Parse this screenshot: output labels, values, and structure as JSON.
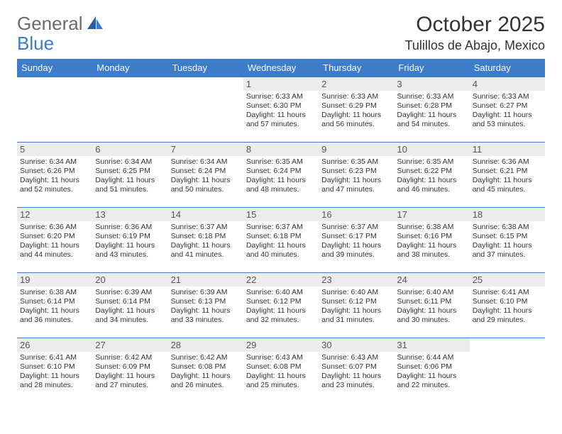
{
  "brand": {
    "part1": "General",
    "part2": "Blue"
  },
  "title": "October 2025",
  "location": "Tulillos de Abajo, Mexico",
  "colors": {
    "header_bg": "#3d7cc9",
    "header_text": "#ffffff",
    "daynum_bg": "#ececec",
    "border": "#3d7cc9",
    "text": "#333333",
    "brand_gray": "#6b6b6b",
    "brand_blue": "#3d7cc9"
  },
  "weekdays": [
    "Sunday",
    "Monday",
    "Tuesday",
    "Wednesday",
    "Thursday",
    "Friday",
    "Saturday"
  ],
  "weeks": [
    [
      null,
      null,
      null,
      {
        "n": "1",
        "sunrise": "Sunrise: 6:33 AM",
        "sunset": "Sunset: 6:30 PM",
        "day1": "Daylight: 11 hours",
        "day2": "and 57 minutes."
      },
      {
        "n": "2",
        "sunrise": "Sunrise: 6:33 AM",
        "sunset": "Sunset: 6:29 PM",
        "day1": "Daylight: 11 hours",
        "day2": "and 56 minutes."
      },
      {
        "n": "3",
        "sunrise": "Sunrise: 6:33 AM",
        "sunset": "Sunset: 6:28 PM",
        "day1": "Daylight: 11 hours",
        "day2": "and 54 minutes."
      },
      {
        "n": "4",
        "sunrise": "Sunrise: 6:33 AM",
        "sunset": "Sunset: 6:27 PM",
        "day1": "Daylight: 11 hours",
        "day2": "and 53 minutes."
      }
    ],
    [
      {
        "n": "5",
        "sunrise": "Sunrise: 6:34 AM",
        "sunset": "Sunset: 6:26 PM",
        "day1": "Daylight: 11 hours",
        "day2": "and 52 minutes."
      },
      {
        "n": "6",
        "sunrise": "Sunrise: 6:34 AM",
        "sunset": "Sunset: 6:25 PM",
        "day1": "Daylight: 11 hours",
        "day2": "and 51 minutes."
      },
      {
        "n": "7",
        "sunrise": "Sunrise: 6:34 AM",
        "sunset": "Sunset: 6:24 PM",
        "day1": "Daylight: 11 hours",
        "day2": "and 50 minutes."
      },
      {
        "n": "8",
        "sunrise": "Sunrise: 6:35 AM",
        "sunset": "Sunset: 6:24 PM",
        "day1": "Daylight: 11 hours",
        "day2": "and 48 minutes."
      },
      {
        "n": "9",
        "sunrise": "Sunrise: 6:35 AM",
        "sunset": "Sunset: 6:23 PM",
        "day1": "Daylight: 11 hours",
        "day2": "and 47 minutes."
      },
      {
        "n": "10",
        "sunrise": "Sunrise: 6:35 AM",
        "sunset": "Sunset: 6:22 PM",
        "day1": "Daylight: 11 hours",
        "day2": "and 46 minutes."
      },
      {
        "n": "11",
        "sunrise": "Sunrise: 6:36 AM",
        "sunset": "Sunset: 6:21 PM",
        "day1": "Daylight: 11 hours",
        "day2": "and 45 minutes."
      }
    ],
    [
      {
        "n": "12",
        "sunrise": "Sunrise: 6:36 AM",
        "sunset": "Sunset: 6:20 PM",
        "day1": "Daylight: 11 hours",
        "day2": "and 44 minutes."
      },
      {
        "n": "13",
        "sunrise": "Sunrise: 6:36 AM",
        "sunset": "Sunset: 6:19 PM",
        "day1": "Daylight: 11 hours",
        "day2": "and 43 minutes."
      },
      {
        "n": "14",
        "sunrise": "Sunrise: 6:37 AM",
        "sunset": "Sunset: 6:18 PM",
        "day1": "Daylight: 11 hours",
        "day2": "and 41 minutes."
      },
      {
        "n": "15",
        "sunrise": "Sunrise: 6:37 AM",
        "sunset": "Sunset: 6:18 PM",
        "day1": "Daylight: 11 hours",
        "day2": "and 40 minutes."
      },
      {
        "n": "16",
        "sunrise": "Sunrise: 6:37 AM",
        "sunset": "Sunset: 6:17 PM",
        "day1": "Daylight: 11 hours",
        "day2": "and 39 minutes."
      },
      {
        "n": "17",
        "sunrise": "Sunrise: 6:38 AM",
        "sunset": "Sunset: 6:16 PM",
        "day1": "Daylight: 11 hours",
        "day2": "and 38 minutes."
      },
      {
        "n": "18",
        "sunrise": "Sunrise: 6:38 AM",
        "sunset": "Sunset: 6:15 PM",
        "day1": "Daylight: 11 hours",
        "day2": "and 37 minutes."
      }
    ],
    [
      {
        "n": "19",
        "sunrise": "Sunrise: 6:38 AM",
        "sunset": "Sunset: 6:14 PM",
        "day1": "Daylight: 11 hours",
        "day2": "and 36 minutes."
      },
      {
        "n": "20",
        "sunrise": "Sunrise: 6:39 AM",
        "sunset": "Sunset: 6:14 PM",
        "day1": "Daylight: 11 hours",
        "day2": "and 34 minutes."
      },
      {
        "n": "21",
        "sunrise": "Sunrise: 6:39 AM",
        "sunset": "Sunset: 6:13 PM",
        "day1": "Daylight: 11 hours",
        "day2": "and 33 minutes."
      },
      {
        "n": "22",
        "sunrise": "Sunrise: 6:40 AM",
        "sunset": "Sunset: 6:12 PM",
        "day1": "Daylight: 11 hours",
        "day2": "and 32 minutes."
      },
      {
        "n": "23",
        "sunrise": "Sunrise: 6:40 AM",
        "sunset": "Sunset: 6:12 PM",
        "day1": "Daylight: 11 hours",
        "day2": "and 31 minutes."
      },
      {
        "n": "24",
        "sunrise": "Sunrise: 6:40 AM",
        "sunset": "Sunset: 6:11 PM",
        "day1": "Daylight: 11 hours",
        "day2": "and 30 minutes."
      },
      {
        "n": "25",
        "sunrise": "Sunrise: 6:41 AM",
        "sunset": "Sunset: 6:10 PM",
        "day1": "Daylight: 11 hours",
        "day2": "and 29 minutes."
      }
    ],
    [
      {
        "n": "26",
        "sunrise": "Sunrise: 6:41 AM",
        "sunset": "Sunset: 6:10 PM",
        "day1": "Daylight: 11 hours",
        "day2": "and 28 minutes."
      },
      {
        "n": "27",
        "sunrise": "Sunrise: 6:42 AM",
        "sunset": "Sunset: 6:09 PM",
        "day1": "Daylight: 11 hours",
        "day2": "and 27 minutes."
      },
      {
        "n": "28",
        "sunrise": "Sunrise: 6:42 AM",
        "sunset": "Sunset: 6:08 PM",
        "day1": "Daylight: 11 hours",
        "day2": "and 26 minutes."
      },
      {
        "n": "29",
        "sunrise": "Sunrise: 6:43 AM",
        "sunset": "Sunset: 6:08 PM",
        "day1": "Daylight: 11 hours",
        "day2": "and 25 minutes."
      },
      {
        "n": "30",
        "sunrise": "Sunrise: 6:43 AM",
        "sunset": "Sunset: 6:07 PM",
        "day1": "Daylight: 11 hours",
        "day2": "and 23 minutes."
      },
      {
        "n": "31",
        "sunrise": "Sunrise: 6:44 AM",
        "sunset": "Sunset: 6:06 PM",
        "day1": "Daylight: 11 hours",
        "day2": "and 22 minutes."
      },
      null
    ]
  ]
}
